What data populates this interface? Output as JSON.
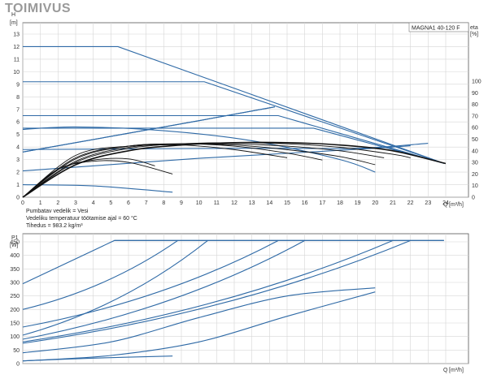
{
  "page": {
    "title": "TOIMIVUS"
  },
  "model_label": "MAGNA1 40-120 F",
  "notes": [
    "Pumbatav vedelik = Vesi",
    "Vedeliku temperatuur töötamise ajal = 60 °C",
    "Tihedus = 983.2 kg/m³"
  ],
  "colors": {
    "curve_blue": "#2f6aa6",
    "efficiency_black": "#111111",
    "grid": "#d6d6d6"
  },
  "chart_data": [
    {
      "type": "line",
      "title": "",
      "ylabel": "H",
      "yunit": "[m]",
      "y2label": "eta",
      "y2unit": "[%]",
      "xlabel": "Q",
      "xunit": "[m³/h]",
      "xlim": [
        0,
        24
      ],
      "ylim": [
        0,
        13
      ],
      "y2lim": [
        0,
        100
      ],
      "grid": true,
      "x_ticks": [
        0,
        1,
        2,
        3,
        4,
        5,
        6,
        7,
        8,
        9,
        10,
        11,
        12,
        13,
        14,
        15,
        16,
        17,
        18,
        19,
        20,
        21,
        22,
        23,
        24
      ],
      "y_ticks": [
        0,
        1,
        2,
        3,
        4,
        5,
        6,
        7,
        8,
        9,
        10,
        11,
        12,
        13
      ],
      "y2_ticks": [
        0,
        10,
        20,
        30,
        40,
        50,
        60,
        70,
        80,
        90,
        100
      ],
      "series_head": [
        {
          "x": [
            0,
            5.4,
            23.9
          ],
          "y": [
            12,
            12,
            2.7
          ]
        },
        {
          "x": [
            0,
            10.3,
            23.9
          ],
          "y": [
            9.2,
            9.2,
            2.7
          ]
        },
        {
          "x": [
            0,
            14.5,
            23.9
          ],
          "y": [
            6.5,
            6.5,
            2.7
          ]
        },
        {
          "x": [
            0,
            16.5,
            23.9
          ],
          "y": [
            5.5,
            5.5,
            2.7
          ]
        },
        {
          "x": [
            0,
            13,
            19,
            23
          ],
          "y": [
            3.8,
            3.9,
            3.9,
            4.3
          ]
        },
        {
          "x": [
            0,
            5,
            10,
            15,
            20,
            22
          ],
          "y": [
            2.1,
            2.6,
            3.1,
            3.5,
            3.9,
            4.1
          ]
        },
        {
          "x": [
            0,
            3,
            8,
            13,
            18,
            20
          ],
          "y": [
            5.4,
            5.6,
            5.3,
            4.5,
            3.0,
            2.0
          ]
        },
        {
          "x": [
            0,
            10,
            14.3
          ],
          "y": [
            3.6,
            6.1,
            7.2
          ]
        },
        {
          "x": [
            0,
            10,
            14.3
          ],
          "y": [
            3.6,
            6.1,
            7.2
          ]
        },
        {
          "x": [
            0,
            4,
            8.5
          ],
          "y": [
            1.0,
            0.9,
            0.4
          ]
        }
      ],
      "series_eta": [
        {
          "x": [
            0,
            3,
            6,
            9,
            12,
            15,
            18,
            21,
            24
          ],
          "y": [
            0,
            28,
            40,
            45,
            47,
            47,
            45,
            40,
            29
          ]
        },
        {
          "x": [
            0,
            3,
            6,
            9,
            12,
            15,
            18,
            21,
            22
          ],
          "y": [
            0,
            30,
            42,
            46,
            47,
            46,
            43,
            37,
            34
          ]
        },
        {
          "x": [
            0,
            3,
            6,
            9,
            12,
            15,
            18,
            20.5
          ],
          "y": [
            0,
            31,
            43,
            46,
            46,
            44,
            40,
            34
          ]
        },
        {
          "x": [
            0,
            3,
            6,
            9,
            12,
            15,
            18,
            20
          ],
          "y": [
            0,
            33,
            44,
            46,
            45,
            41,
            35,
            28
          ]
        },
        {
          "x": [
            0,
            3,
            6,
            9,
            12,
            15,
            17
          ],
          "y": [
            0,
            34,
            44,
            46,
            44,
            38,
            32
          ]
        },
        {
          "x": [
            0,
            3,
            6,
            9,
            12,
            15
          ],
          "y": [
            0,
            36,
            44,
            45,
            41,
            34
          ]
        },
        {
          "x": [
            0,
            2,
            4,
            6,
            8.5
          ],
          "y": [
            0,
            24,
            31,
            30,
            20
          ]
        },
        {
          "x": [
            0,
            2,
            4,
            6,
            7.5
          ],
          "y": [
            0,
            24,
            32,
            33,
            27
          ]
        }
      ]
    },
    {
      "type": "line",
      "title": "",
      "ylabel": "P1",
      "yunit": "[W]",
      "xlabel": "Q",
      "xunit": "[m³/h]",
      "xlim": [
        0,
        24
      ],
      "ylim": [
        0,
        480
      ],
      "grid": true,
      "y_ticks": [
        0,
        50,
        100,
        150,
        200,
        250,
        300,
        350,
        400,
        450
      ],
      "series": [
        {
          "x": [
            0,
            5.2,
            23.9
          ],
          "y": [
            295,
            455,
            455
          ]
        },
        {
          "x": [
            0,
            8.8
          ],
          "y": [
            200,
            455
          ]
        },
        {
          "x": [
            0,
            10.5
          ],
          "y": [
            105,
            455
          ]
        },
        {
          "x": [
            0,
            14.5
          ],
          "y": [
            135,
            455
          ]
        },
        {
          "x": [
            0,
            16
          ],
          "y": [
            90,
            455
          ]
        },
        {
          "x": [
            0,
            21
          ],
          "y": [
            80,
            455
          ]
        },
        {
          "x": [
            0,
            22
          ],
          "y": [
            75,
            455
          ]
        },
        {
          "x": [
            0,
            5,
            10,
            15,
            20
          ],
          "y": [
            40,
            80,
            170,
            250,
            280
          ]
        },
        {
          "x": [
            0,
            5,
            10,
            15,
            20
          ],
          "y": [
            10,
            30,
            80,
            175,
            265
          ]
        },
        {
          "x": [
            0,
            4,
            8.5
          ],
          "y": [
            10,
            20,
            28
          ]
        }
      ]
    }
  ]
}
